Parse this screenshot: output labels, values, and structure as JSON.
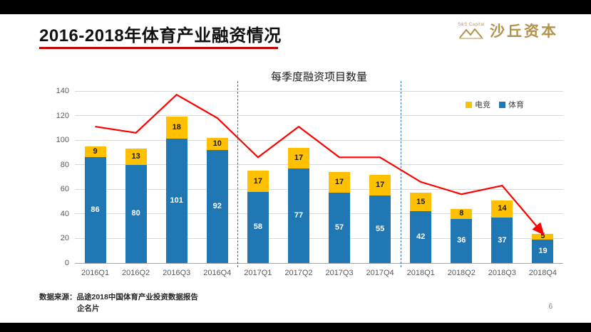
{
  "slide": {
    "title": "2016-2018年体育产业融资情况",
    "page_number": "6",
    "source_line1": "数据来源：品途2018中国体育产业投资数据报告",
    "source_line2": "企名片",
    "logo_text": "沙丘资本",
    "logo_subtext": "S&S Capital",
    "accent_color": "#C00000",
    "logo_color": "#B5924C"
  },
  "chart_data": {
    "type": "bar",
    "subtype": "stacked-bars-with-line",
    "title": "每季度融资项目数量",
    "categories": [
      "2016Q1",
      "2016Q2",
      "2016Q3",
      "2016Q4",
      "2017Q1",
      "2017Q2",
      "2017Q3",
      "2017Q4",
      "2018Q1",
      "2018Q2",
      "2018Q3",
      "2018Q4"
    ],
    "series": [
      {
        "name": "体育",
        "color": "#1F77B4",
        "values": [
          86,
          80,
          101,
          92,
          58,
          77,
          57,
          55,
          42,
          36,
          37,
          19
        ]
      },
      {
        "name": "电竞",
        "color": "#FFC000",
        "values": [
          9,
          13,
          18,
          10,
          17,
          17,
          17,
          17,
          15,
          8,
          14,
          5
        ]
      }
    ],
    "line_series": {
      "color": "#FF0000",
      "values": [
        111,
        106,
        137,
        118,
        86,
        111,
        86,
        86,
        66,
        56,
        63,
        24
      ]
    },
    "ylim": [
      0,
      140
    ],
    "ytick_step": 20,
    "grid": "horizontal",
    "legend_position": "top-right",
    "legend": [
      {
        "label": "电竞",
        "color": "#FFC000"
      },
      {
        "label": "体育",
        "color": "#1F77B4"
      }
    ],
    "year_separators_after_index": [
      3,
      7
    ],
    "separator_color": "#2E75B6"
  }
}
